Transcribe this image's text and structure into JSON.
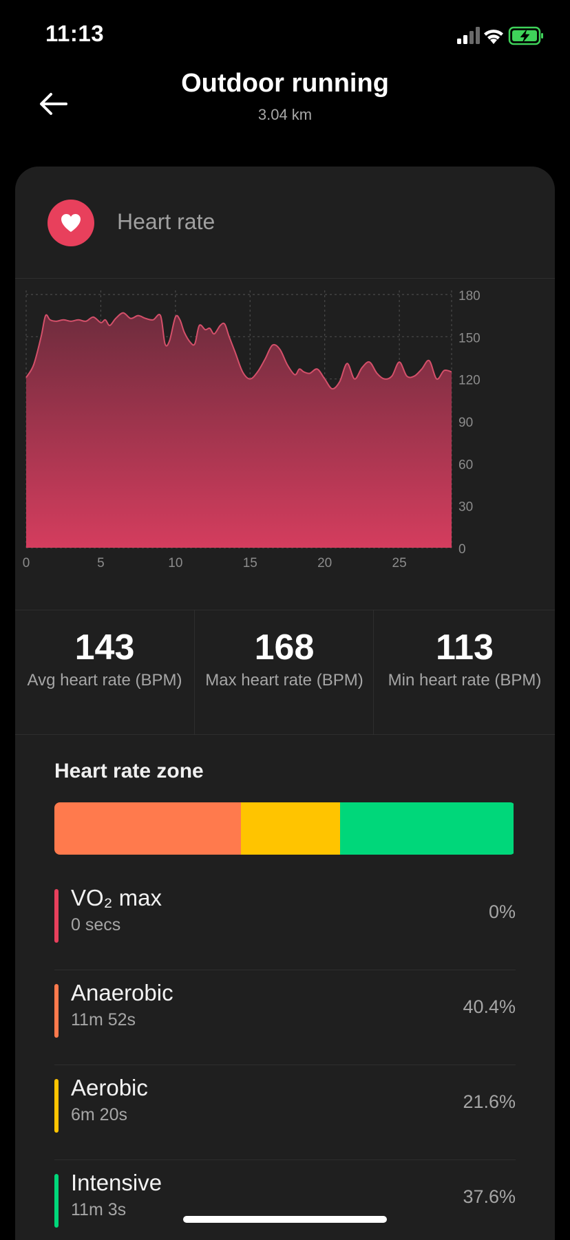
{
  "status_bar": {
    "time": "11:13",
    "icons": [
      "cellular-signal-icon",
      "wifi-icon",
      "battery-charging-icon"
    ],
    "battery_color": "#3fd35a"
  },
  "header": {
    "title": "Outdoor running",
    "subtitle": "3.04 km",
    "back_icon": "arrow-left-icon"
  },
  "card": {
    "title": "Heart rate",
    "icon": "heart-icon",
    "accent": "#e8405c"
  },
  "chart_data": {
    "type": "area",
    "title": "",
    "xlabel": "",
    "ylabel": "",
    "x_ticks": [
      "0",
      "5",
      "10",
      "15",
      "20",
      "25"
    ],
    "y_ticks": [
      "0",
      "30",
      "60",
      "90",
      "120",
      "150",
      "180"
    ],
    "xlim": [
      0,
      28.5
    ],
    "ylim": [
      0,
      180
    ],
    "grid": true,
    "fill_color_top": "#6e2c3d",
    "fill_color_bottom": "#d43d5e",
    "line_color": "#d4506a",
    "x": [
      0,
      0.5,
      1,
      1.3,
      1.6,
      2,
      2.5,
      3,
      3.5,
      4,
      4.5,
      5,
      5.3,
      5.6,
      6,
      6.5,
      7,
      7.5,
      8,
      8.5,
      9,
      9.3,
      9.6,
      10,
      10.3,
      10.6,
      11,
      11.3,
      11.6,
      12,
      12.3,
      12.6,
      13,
      13.3,
      13.6,
      14,
      14.5,
      15,
      15.5,
      16,
      16.5,
      17,
      17.5,
      18,
      18.3,
      18.6,
      19,
      19.5,
      20,
      20.5,
      21,
      21.5,
      22,
      22.5,
      23,
      23.5,
      24,
      24.5,
      25,
      25.5,
      26,
      26.5,
      27,
      27.5,
      28,
      28.5
    ],
    "y": [
      121,
      130,
      150,
      165,
      162,
      161,
      162,
      161,
      162,
      161,
      164,
      160,
      162,
      158,
      163,
      167,
      163,
      165,
      163,
      162,
      165,
      145,
      147,
      164,
      162,
      153,
      146,
      145,
      158,
      155,
      156,
      152,
      158,
      159,
      150,
      139,
      125,
      120,
      125,
      134,
      144,
      141,
      130,
      123,
      127,
      125,
      124,
      127,
      120,
      113,
      118,
      131,
      120,
      128,
      132,
      124,
      120,
      122,
      132,
      122,
      122,
      127,
      133,
      120,
      126,
      125
    ]
  },
  "stats": [
    {
      "value": "143",
      "label": "Avg heart rate (BPM)"
    },
    {
      "value": "168",
      "label": "Max heart rate (BPM)"
    },
    {
      "value": "113",
      "label": "Min heart rate (BPM)"
    }
  ],
  "zones": {
    "title": "Heart rate zone",
    "bar": [
      {
        "fraction": 0.404,
        "color": "#ff7a4d"
      },
      {
        "fraction": 0.216,
        "color": "#ffc400"
      },
      {
        "fraction": 0.376,
        "color": "#00d77a"
      }
    ],
    "items": [
      {
        "name": "VO₂ max",
        "time": "0 secs",
        "pct": "0%",
        "color": "#e8405c"
      },
      {
        "name": "Anaerobic",
        "time": "11m 52s",
        "pct": "40.4%",
        "color": "#ff7a4d"
      },
      {
        "name": "Aerobic",
        "time": "6m 20s",
        "pct": "21.6%",
        "color": "#ffc400"
      },
      {
        "name": "Intensive",
        "time": "11m 3s",
        "pct": "37.6%",
        "color": "#00d77a"
      }
    ]
  }
}
